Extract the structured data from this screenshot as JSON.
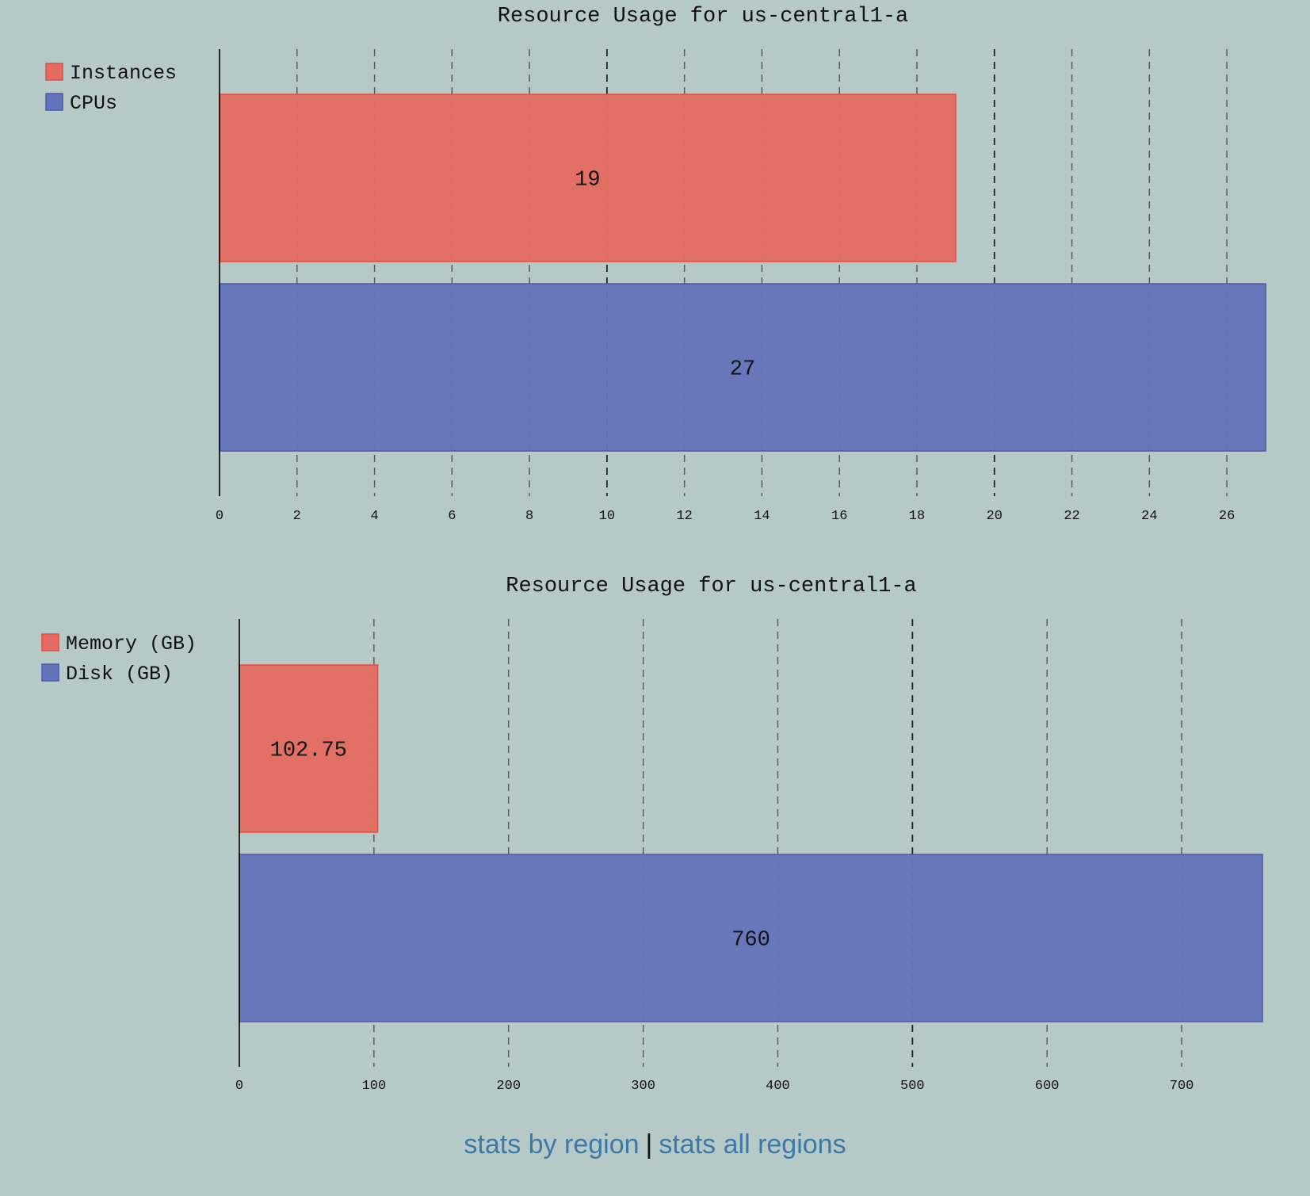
{
  "colors": {
    "background": "#b7c9c7",
    "series_red": "#e36b60",
    "series_red_edge": "#e04e45",
    "series_blue": "#6573ba",
    "series_blue_edge": "#4a59b0",
    "link": "#3a7aa8"
  },
  "chart_data": [
    {
      "type": "bar",
      "orientation": "horizontal",
      "title": "Resource Usage for us-central1-a",
      "series": [
        {
          "name": "Instances",
          "values": [
            19
          ],
          "color": "#e36b60"
        },
        {
          "name": "CPUs",
          "values": [
            27
          ],
          "color": "#6573ba"
        }
      ],
      "xlim": [
        0,
        27
      ],
      "xticks": [
        0,
        2,
        4,
        6,
        8,
        10,
        12,
        14,
        16,
        18,
        20,
        22,
        24,
        26
      ],
      "major_ticks": [
        10,
        20
      ],
      "grid": true,
      "legend": "top-left"
    },
    {
      "type": "bar",
      "orientation": "horizontal",
      "title": "Resource Usage for us-central1-a",
      "series": [
        {
          "name": "Memory (GB)",
          "values": [
            102.75
          ],
          "color": "#e36b60"
        },
        {
          "name": "Disk (GB)",
          "values": [
            760
          ],
          "color": "#6573ba"
        }
      ],
      "xlim": [
        0,
        760
      ],
      "xticks": [
        0,
        100,
        200,
        300,
        400,
        500,
        600,
        700
      ],
      "major_ticks": [
        500
      ],
      "grid": true,
      "legend": "top-left"
    }
  ],
  "footer": {
    "link_by_region": "stats by region",
    "separator": "|",
    "link_all_regions": "stats all regions"
  }
}
